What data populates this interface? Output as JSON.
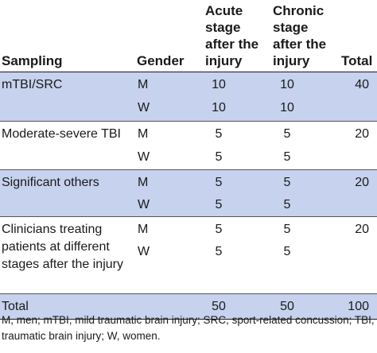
{
  "header": {
    "sampling": "Sampling",
    "gender": "Gender",
    "acute": [
      "Acute",
      "stage",
      "after the",
      "injury"
    ],
    "chronic": [
      "Chronic",
      "stage",
      "after the",
      "injury"
    ],
    "total": "Total"
  },
  "groups": [
    {
      "label": "mTBI/SRC",
      "total": "40",
      "rows": [
        {
          "gender": "M",
          "acute": "10",
          "chronic": "10"
        },
        {
          "gender": "W",
          "acute": "10",
          "chronic": "10"
        }
      ]
    },
    {
      "label": "Moderate-severe TBI",
      "total": "20",
      "rows": [
        {
          "gender": "M",
          "acute": "5",
          "chronic": "5"
        },
        {
          "gender": "W",
          "acute": "5",
          "chronic": "5"
        }
      ]
    },
    {
      "label": "Significant others",
      "total": "20",
      "rows": [
        {
          "gender": "M",
          "acute": "5",
          "chronic": "5"
        },
        {
          "gender": "W",
          "acute": "5",
          "chronic": "5"
        }
      ]
    },
    {
      "label": "Clinicians treating patients at different stages after the injury",
      "total": "20",
      "rows": [
        {
          "gender": "M",
          "acute": "5",
          "chronic": "5"
        },
        {
          "gender": "W",
          "acute": "5",
          "chronic": "5"
        }
      ]
    }
  ],
  "total_row": {
    "label": "Total",
    "acute": "50",
    "chronic": "50",
    "total": "100"
  },
  "footnote": "M, men; mTBI, mild traumatic brain injury; SRC, sport-related concussion; TBI,  traumatic brain injury; W, women."
}
